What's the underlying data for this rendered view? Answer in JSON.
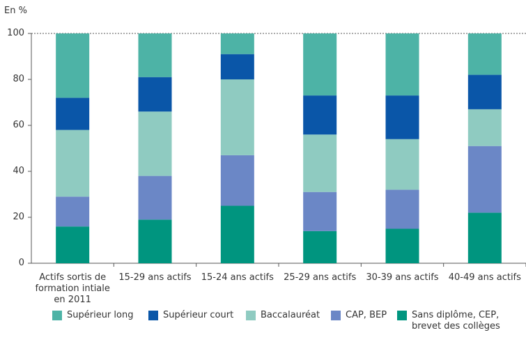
{
  "chart_data": {
    "type": "stacked_bar",
    "y_label": "En %",
    "categories": [
      "Actifs sortis de formation intiale en 2011",
      "15-29 ans actifs",
      "15-24 ans actifs",
      "25-29 ans actifs",
      "30-39 ans actifs",
      "40-49 ans actifs"
    ],
    "series": [
      {
        "name": "Supérieur long",
        "color": "#4db3a6",
        "values": [
          28,
          19,
          9,
          27,
          27,
          18
        ]
      },
      {
        "name": "Supérieur court",
        "color": "#0a56a8",
        "values": [
          14,
          15,
          11,
          17,
          19,
          15
        ]
      },
      {
        "name": "Baccalauréat",
        "color": "#8fcbc1",
        "values": [
          29,
          28,
          33,
          25,
          22,
          16
        ]
      },
      {
        "name": "CAP, BEP",
        "color": "#6b87c6",
        "values": [
          13,
          19,
          22,
          17,
          17,
          29
        ]
      },
      {
        "name": "Sans diplôme, CEP, brevet des collèges",
        "color": "#00957f",
        "values": [
          16,
          19,
          25,
          14,
          15,
          22
        ]
      }
    ],
    "ylim": [
      0,
      100
    ],
    "yticks": [
      0,
      20,
      40,
      60,
      80,
      100
    ],
    "grid": false
  }
}
